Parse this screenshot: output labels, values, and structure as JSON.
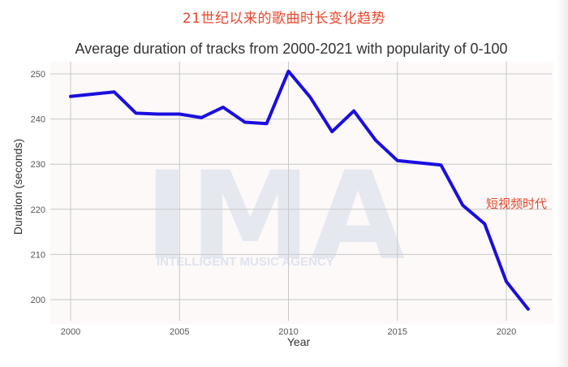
{
  "headline": "21世纪以来的歌曲时长变化趋势",
  "annotation": "短视频时代",
  "watermark": {
    "logo": "IMA",
    "subtitle": "INTELLIGENT MUSIC AGENCY"
  },
  "colors": {
    "line": "#1a0ee0",
    "headline": "#e8452c",
    "grid": "#c8c8c8",
    "plot_bg": "#fcf9f8"
  },
  "chart_data": {
    "type": "line",
    "title": "Average duration of tracks from 2000-2021 with popularity of 0-100",
    "xlabel": "Year",
    "ylabel": "Duration (seconds)",
    "x": [
      2000,
      2001,
      2002,
      2003,
      2004,
      2005,
      2006,
      2007,
      2008,
      2009,
      2010,
      2011,
      2012,
      2013,
      2014,
      2015,
      2016,
      2017,
      2018,
      2019,
      2020,
      2021
    ],
    "series": [
      {
        "name": "Average duration",
        "values": [
          245.0,
          245.5,
          246.0,
          241.3,
          241.1,
          241.1,
          240.3,
          242.6,
          239.3,
          239.0,
          250.6,
          244.8,
          237.2,
          241.8,
          235.3,
          230.8,
          230.3,
          229.8,
          220.9,
          216.8,
          204.0,
          197.9
        ]
      }
    ],
    "xticks": [
      2000,
      2005,
      2010,
      2015,
      2020
    ],
    "yticks": [
      200,
      210,
      220,
      230,
      240,
      250
    ],
    "xlim": [
      1999.1,
      2022.1
    ],
    "ylim": [
      196,
      253
    ],
    "grid": true,
    "legend": null
  }
}
